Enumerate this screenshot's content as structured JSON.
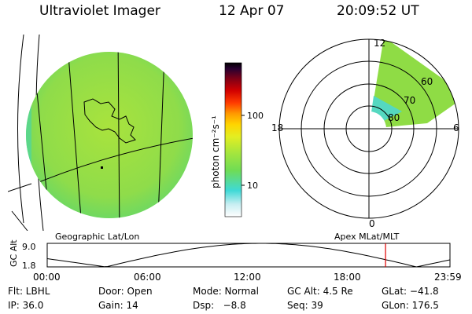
{
  "header": {
    "title": "Ultraviolet Imager",
    "date": "12 Apr 07",
    "time": "20:09:52 UT"
  },
  "colorbar": {
    "label": "photon cm⁻²s⁻¹",
    "ticks": [
      {
        "label": "100",
        "value": 100
      },
      {
        "label": "10",
        "value": 10
      }
    ],
    "palette": [
      "#ffffff",
      "#c8eef2",
      "#3fd9d6",
      "#6fdc55",
      "#a8e63c",
      "#e3ee22",
      "#ffd400",
      "#ff9900",
      "#ff3c00",
      "#d10000",
      "#7a0018",
      "#2a0030",
      "#000000"
    ]
  },
  "panels": {
    "left_label": "Geographic Lat/Lon",
    "right_label": "Apex MLat/MLT"
  },
  "polar": {
    "clock_labels": {
      "top": "12",
      "left": "18",
      "right": "6",
      "bottom": "0"
    },
    "lat_labels": [
      "60",
      "70",
      "80"
    ]
  },
  "altitude_plot": {
    "ylabel": "GC Alt",
    "ymax_label": "9.0",
    "ymin_label": "1.8",
    "ymin": 1.8,
    "ymax": 9.0,
    "x_tick_labels": [
      "00:00",
      "06:00",
      "12:00",
      "18:00",
      "23:59"
    ],
    "marker_time_hours": 20.16
  },
  "info": {
    "filter": "Flt: LBHL",
    "door": "Door: Open",
    "mode": "Mode: Normal",
    "gc_alt": "GC Alt: 4.5 Re",
    "glat": "GLat: −41.8",
    "ip": "IP: 36.0",
    "gain": "Gain: 14",
    "dsp": "Dsp:   −8.8",
    "seq": "Seq: 39",
    "glon": "GLon: 176.5"
  }
}
